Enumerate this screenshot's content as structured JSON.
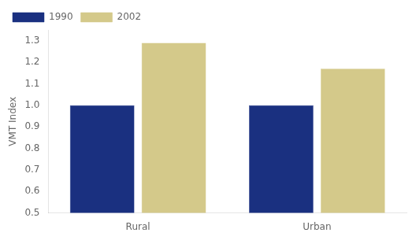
{
  "chart_data": {
    "type": "bar",
    "ylabel": "VMT Index",
    "categories": [
      "Rural",
      "Urban"
    ],
    "series": [
      {
        "name": "1990",
        "color": "#1a3080",
        "values": [
          1.0,
          1.0
        ]
      },
      {
        "name": "2002",
        "color": "#d4c98a",
        "values": [
          1.29,
          1.17
        ]
      }
    ],
    "ylim": [
      0.5,
      1.35
    ],
    "yticks": [
      0.5,
      0.6,
      0.7,
      0.8,
      0.9,
      {
        "value": 1.0,
        "label": "1.0"
      },
      1.1,
      1.2,
      1.3
    ],
    "grid": false,
    "legend": "upper left"
  }
}
